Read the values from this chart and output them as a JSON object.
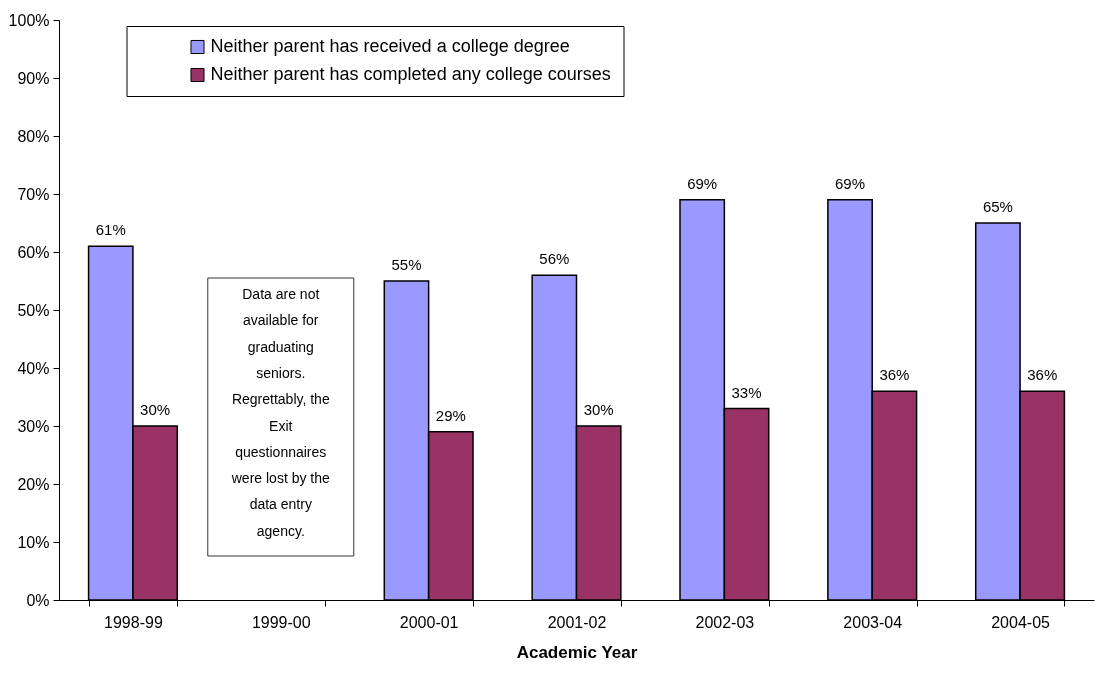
{
  "chart_data": {
    "type": "bar",
    "xlabel": "Academic Year",
    "categories": [
      "1998-99",
      "1999-00",
      "2000-01",
      "2001-02",
      "2002-03",
      "2003-04",
      "2004-05"
    ],
    "series": [
      {
        "name": "Neither parent has received a college degree",
        "color": "#9999ff",
        "values": [
          61,
          null,
          55,
          56,
          69,
          69,
          65
        ],
        "value_labels": [
          "61%",
          null,
          "55%",
          "56%",
          "69%",
          "69%",
          "65%"
        ]
      },
      {
        "name": "Neither parent has completed any college courses",
        "color": "#993366",
        "values": [
          30,
          null,
          29,
          30,
          33,
          36,
          36
        ],
        "value_labels": [
          "30%",
          null,
          "29%",
          "30%",
          "33%",
          "36%",
          "36%"
        ]
      }
    ],
    "ylim": [
      0,
      100
    ],
    "yticks": [
      {
        "value": 0,
        "label": "0%"
      },
      {
        "value": 10,
        "label": "10%"
      },
      {
        "value": 20,
        "label": "20%"
      },
      {
        "value": 30,
        "label": "30%"
      },
      {
        "value": 40,
        "label": "40%"
      },
      {
        "value": 50,
        "label": "50%"
      },
      {
        "value": 60,
        "label": "60%"
      },
      {
        "value": 70,
        "label": "70%"
      },
      {
        "value": 80,
        "label": "80%"
      },
      {
        "value": 90,
        "label": "90%"
      },
      {
        "value": 100,
        "label": "100%"
      }
    ],
    "grid": false,
    "legend": "top",
    "annotations": [
      "Data are not available for graduating seniors. Regrettably, the Exit questionnaires were lost by the data entry agency."
    ]
  }
}
